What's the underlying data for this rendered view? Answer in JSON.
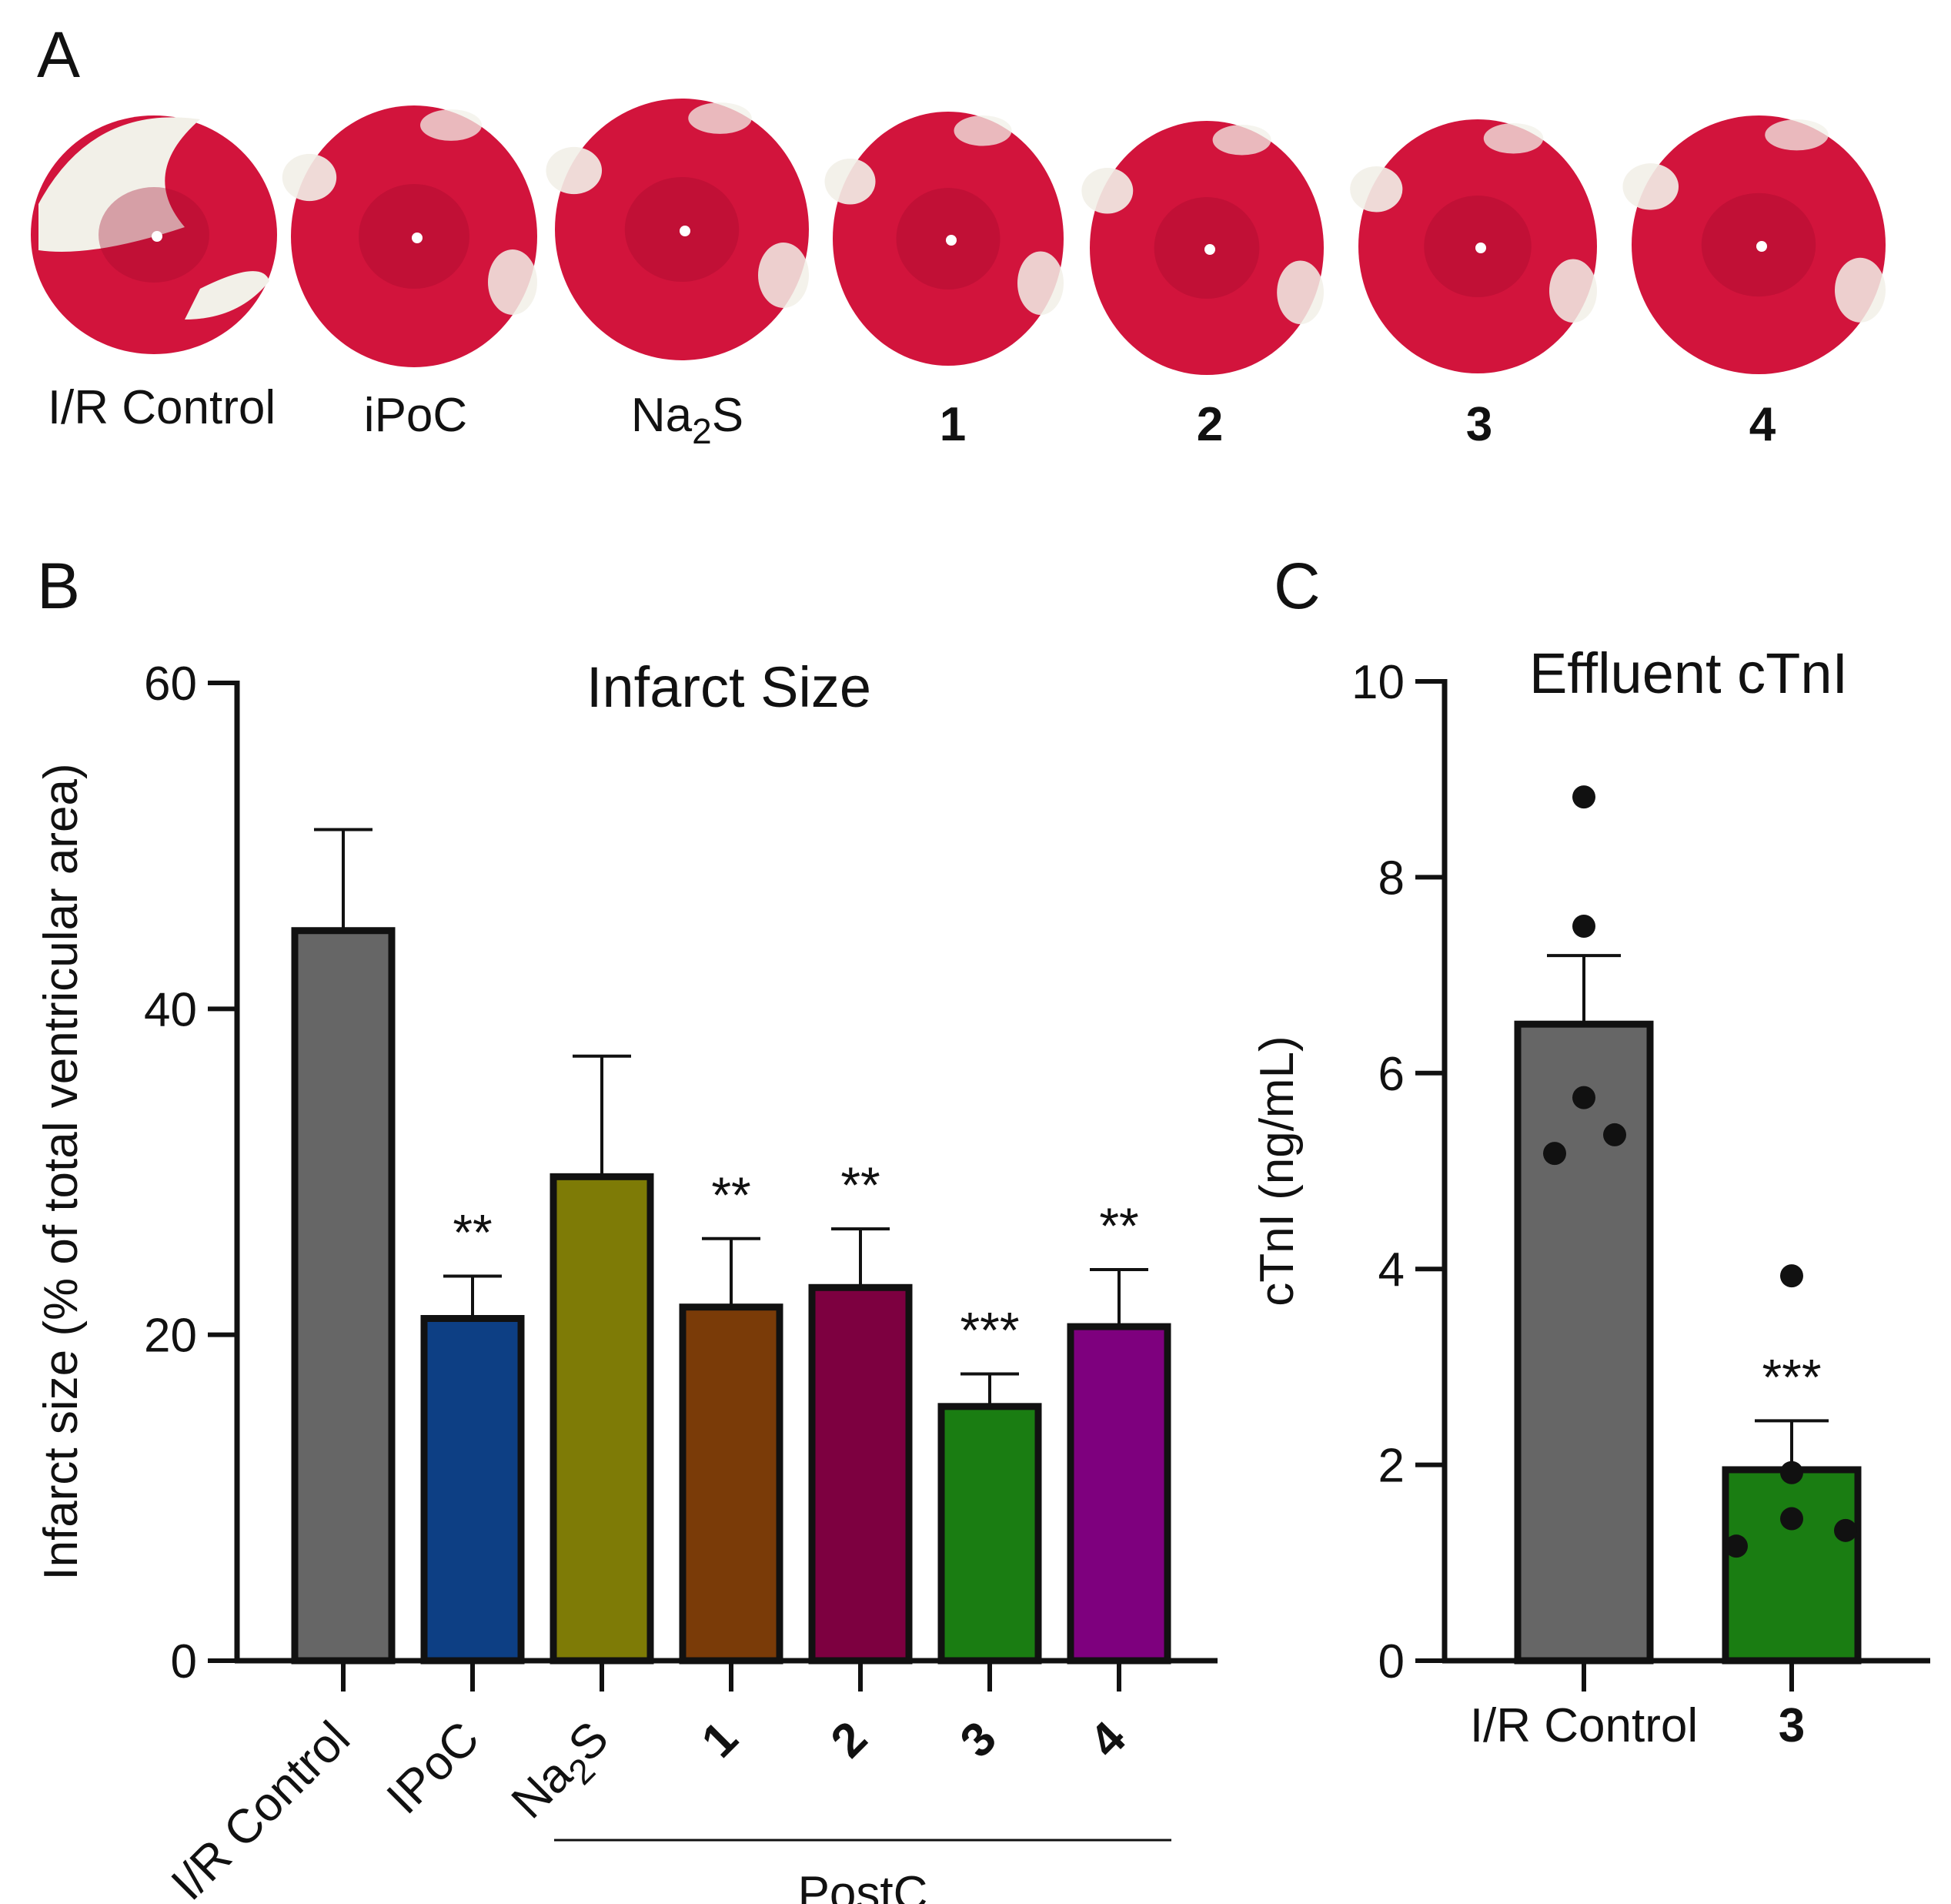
{
  "panels": {
    "a": "A",
    "b": "B",
    "c": "C"
  },
  "panel_a": {
    "slices": [
      {
        "label": "I/R Control",
        "bold": false
      },
      {
        "label": "iPoC",
        "bold": false
      },
      {
        "label": "Na2S",
        "bold": false
      },
      {
        "label": "1",
        "bold": true
      },
      {
        "label": "2",
        "bold": true
      },
      {
        "label": "3",
        "bold": true
      },
      {
        "label": "4",
        "bold": true
      }
    ],
    "tissue_colors": {
      "viable": "#d2143c",
      "dark": "#a30a2a",
      "infarct": "#f2f0e8"
    }
  },
  "chart_data": [
    {
      "type": "bar",
      "title": "Infarct Size",
      "ylabel": "Infarct size (% of total ventricular area)",
      "xlabel": "",
      "ylim": [
        0,
        60
      ],
      "yticks": [
        0,
        20,
        40,
        60
      ],
      "categories": [
        "I/R Control",
        "IPoC",
        "Na2S",
        "1",
        "2",
        "3",
        "4"
      ],
      "category_bold": [
        false,
        false,
        false,
        true,
        true,
        true,
        true
      ],
      "values": [
        44.8,
        21.0,
        29.7,
        21.7,
        22.9,
        15.6,
        20.5
      ],
      "errors": [
        6.2,
        2.6,
        7.4,
        4.2,
        3.6,
        2.0,
        3.5
      ],
      "colors": [
        "#666666",
        "#0d3f84",
        "#7e7b06",
        "#7a3b08",
        "#7d0040",
        "#1a7d12",
        "#7e007e"
      ],
      "significance": [
        "",
        "**",
        "",
        "**",
        "**",
        "***",
        "**"
      ],
      "group_label": "PostC",
      "group_members": [
        "Na2S",
        "1",
        "2",
        "3",
        "4"
      ]
    },
    {
      "type": "bar",
      "title": "Effluent cTnI",
      "ylabel": "cTnI (ng/mL)",
      "xlabel": "",
      "ylim": [
        0,
        10
      ],
      "yticks": [
        0,
        2,
        4,
        6,
        8,
        10
      ],
      "categories": [
        "I/R Control",
        "3"
      ],
      "category_bold": [
        false,
        true
      ],
      "values": [
        6.5,
        1.95
      ],
      "errors": [
        0.7,
        0.5
      ],
      "colors": [
        "#666666",
        "#1a7d12"
      ],
      "significance": [
        "",
        "***"
      ],
      "points": [
        [
          8.82,
          7.5,
          5.75,
          5.37,
          5.18
        ],
        [
          3.93,
          1.92,
          1.45,
          1.33,
          1.17
        ]
      ]
    }
  ]
}
